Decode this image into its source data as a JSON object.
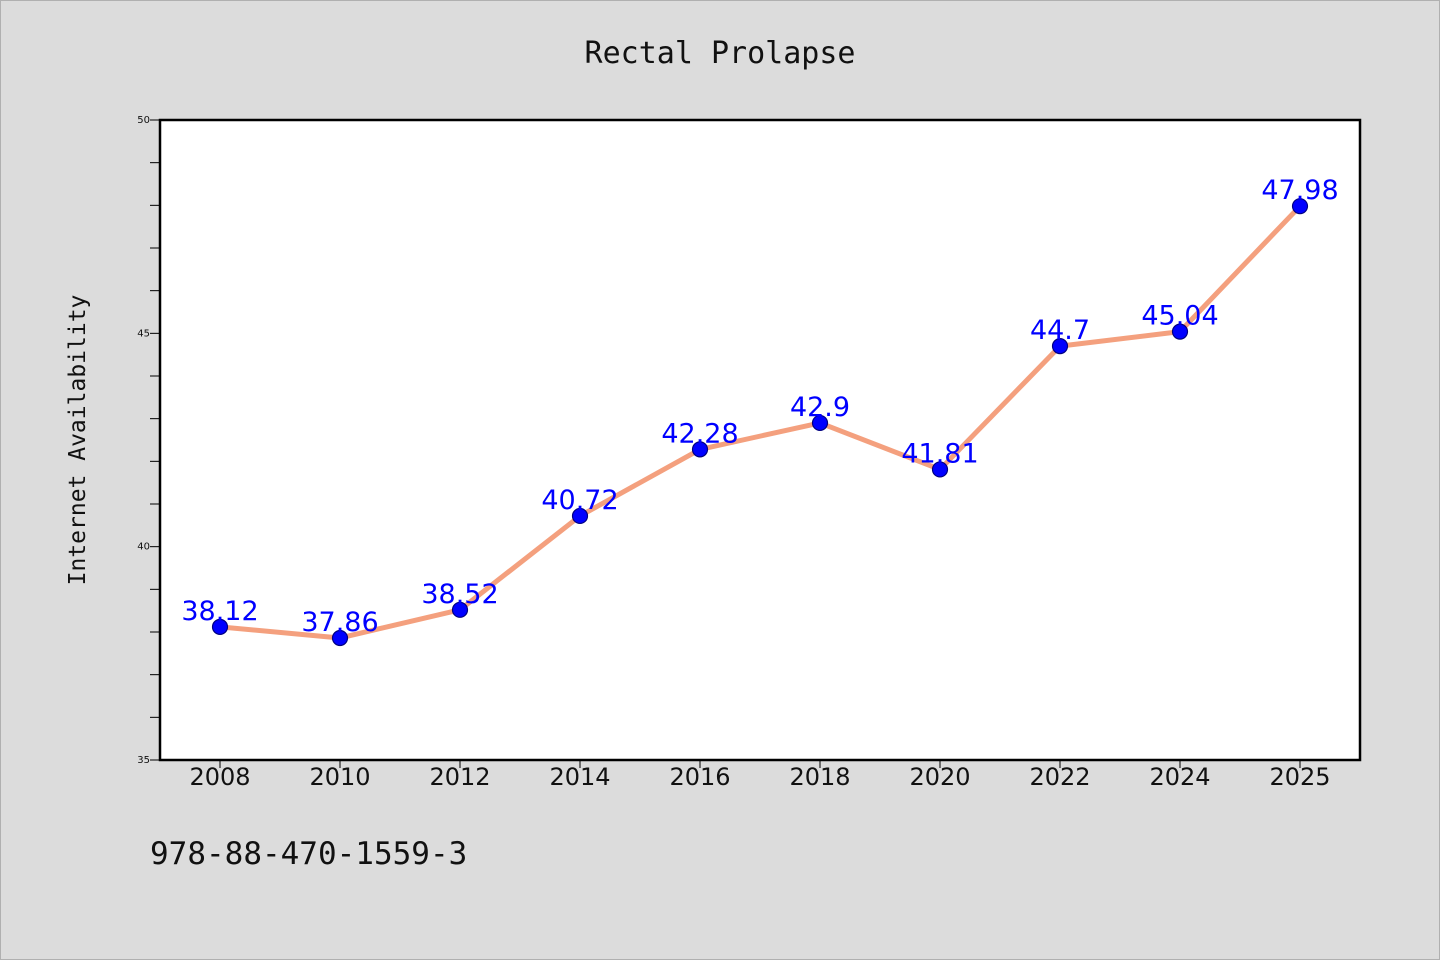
{
  "chart_data": {
    "type": "line",
    "title": "Rectal Prolapse",
    "ylabel": "Internet Availability",
    "xlabel": "",
    "categories": [
      "2008",
      "2010",
      "2012",
      "2014",
      "2016",
      "2018",
      "2020",
      "2022",
      "2024",
      "2025"
    ],
    "series": [
      {
        "values": [
          38.12,
          37.86,
          38.52,
          40.72,
          42.28,
          42.9,
          41.81,
          44.7,
          45.04,
          47.98
        ],
        "labels": [
          "38.12",
          "37.86",
          "38.52",
          "40.72",
          "42.28",
          "42.9",
          "41.81",
          "44.7",
          "45.04",
          "47.98"
        ]
      }
    ],
    "ylim": [
      35,
      50
    ],
    "yticks": [
      "35",
      "40",
      "45",
      "50"
    ],
    "grid": false,
    "colors": {
      "line": "#f4a07e",
      "marker": "#0000ff",
      "marker_edge": "#000080",
      "label": "#0000ff",
      "background": "#dcdcdc",
      "plot_background": "#ffffff"
    }
  },
  "footer_text": "978-88-470-1559-3"
}
